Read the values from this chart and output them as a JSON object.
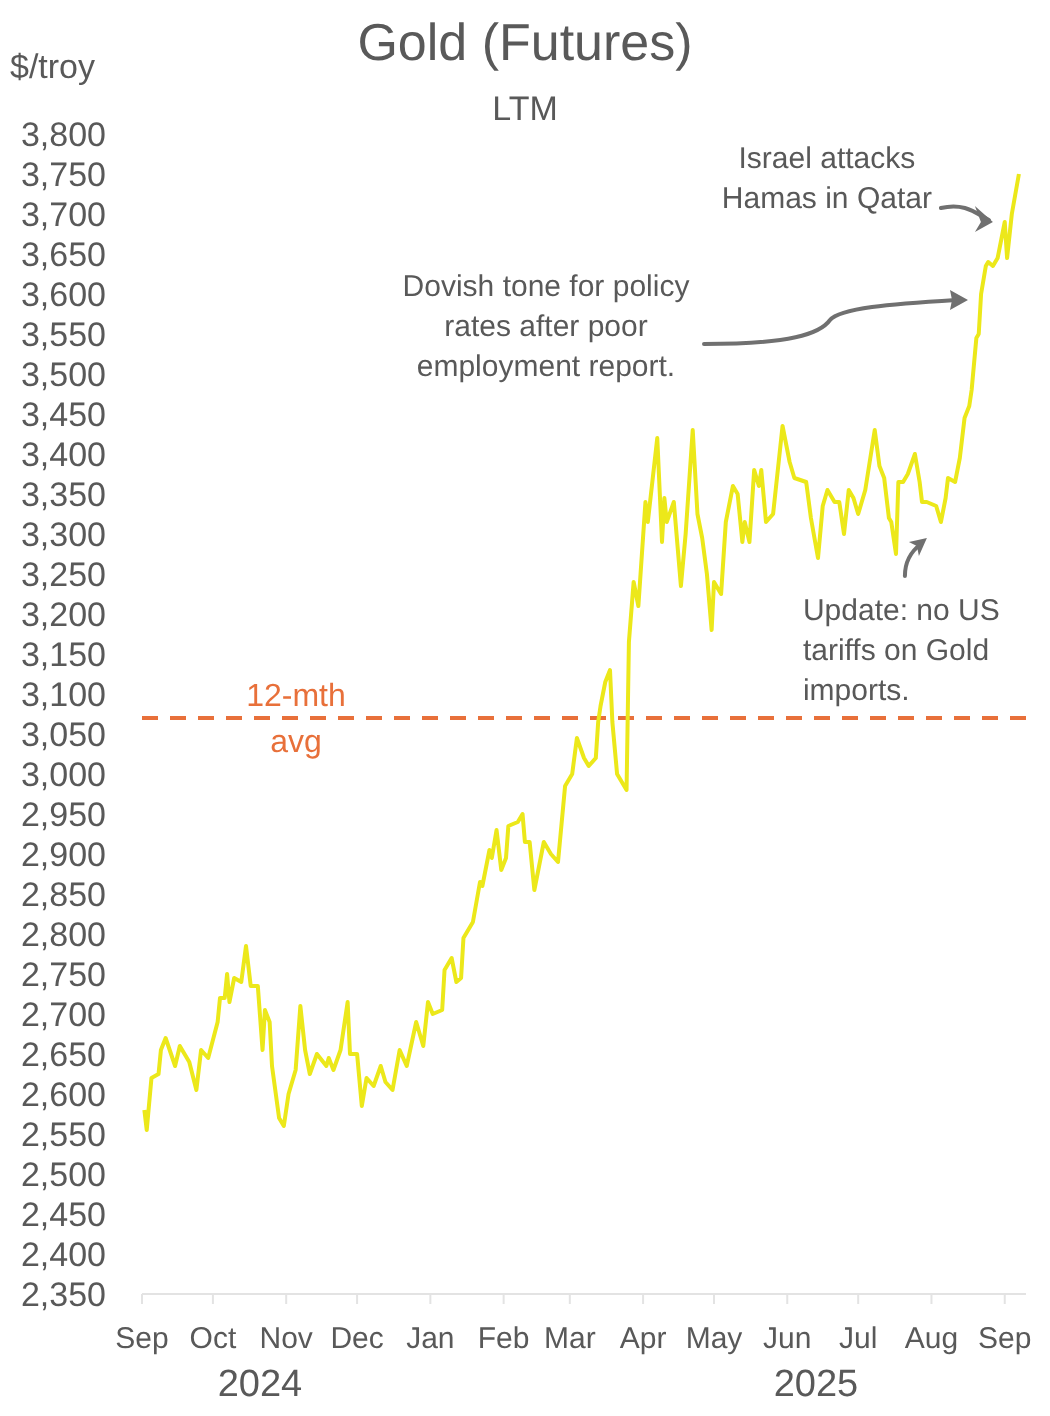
{
  "chart_data": {
    "type": "line",
    "title": "Gold (Futures)",
    "subtitle": "LTM",
    "ylabel": "$/troy",
    "x": [
      "2024-09-02",
      "2024-09-03",
      "2024-09-05",
      "2024-09-08",
      "2024-09-09",
      "2024-09-11",
      "2024-09-15",
      "2024-09-17",
      "2024-09-21",
      "2024-09-24",
      "2024-09-26",
      "2024-09-29",
      "2024-10-03",
      "2024-10-04",
      "2024-10-06",
      "2024-10-07",
      "2024-10-08",
      "2024-10-10",
      "2024-10-13",
      "2024-10-15",
      "2024-10-17",
      "2024-10-20",
      "2024-10-22",
      "2024-10-23",
      "2024-10-25",
      "2024-10-26",
      "2024-10-29",
      "2024-10-31",
      "2024-11-02",
      "2024-11-05",
      "2024-11-07",
      "2024-11-09",
      "2024-11-11",
      "2024-11-14",
      "2024-11-18",
      "2024-11-19",
      "2024-11-21",
      "2024-11-24",
      "2024-11-27",
      "2024-11-28",
      "2024-12-01",
      "2024-12-03",
      "2024-12-05",
      "2024-12-08",
      "2024-12-11",
      "2024-12-13",
      "2024-12-16",
      "2024-12-19",
      "2024-12-22",
      "2024-12-26",
      "2024-12-29",
      "2024-12-31",
      "2025-01-02",
      "2025-01-06",
      "2025-01-07",
      "2025-01-10",
      "2025-01-12",
      "2025-01-14",
      "2025-01-15",
      "2025-01-19",
      "2025-01-22",
      "2025-01-23",
      "2025-01-26",
      "2025-01-27",
      "2025-01-29",
      "2025-01-31",
      "2025-02-02",
      "2025-02-03",
      "2025-02-07",
      "2025-02-09",
      "2025-02-10",
      "2025-02-12",
      "2025-02-14",
      "2025-02-16",
      "2025-02-18",
      "2025-02-21",
      "2025-02-24",
      "2025-02-27",
      "2025-03-02",
      "2025-03-04",
      "2025-03-07",
      "2025-03-09",
      "2025-03-12",
      "2025-03-13",
      "2025-03-14",
      "2025-03-16",
      "2025-03-18",
      "2025-03-19",
      "2025-03-21",
      "2025-03-25",
      "2025-03-26",
      "2025-03-28",
      "2025-03-30",
      "2025-04-02",
      "2025-04-03",
      "2025-04-07",
      "2025-04-09",
      "2025-04-10",
      "2025-04-11",
      "2025-04-14",
      "2025-04-17",
      "2025-04-19",
      "2025-04-22",
      "2025-04-24",
      "2025-04-26",
      "2025-04-28",
      "2025-04-30",
      "2025-05-01",
      "2025-05-04",
      "2025-05-06",
      "2025-05-09",
      "2025-05-11",
      "2025-05-13",
      "2025-05-14",
      "2025-05-16",
      "2025-05-18",
      "2025-05-20",
      "2025-05-21",
      "2025-05-23",
      "2025-05-26",
      "2025-05-30",
      "2025-06-02",
      "2025-06-04",
      "2025-06-09",
      "2025-06-11",
      "2025-06-14",
      "2025-06-16",
      "2025-06-18",
      "2025-06-21",
      "2025-06-23",
      "2025-06-25",
      "2025-06-27",
      "2025-06-29",
      "2025-07-01",
      "2025-07-03",
      "2025-07-04",
      "2025-07-08",
      "2025-07-10",
      "2025-07-12",
      "2025-07-14",
      "2025-07-15",
      "2025-07-17",
      "2025-07-18",
      "2025-07-20",
      "2025-07-22",
      "2025-07-25",
      "2025-07-27",
      "2025-07-28",
      "2025-07-30",
      "2025-08-03",
      "2025-08-05",
      "2025-08-07",
      "2025-08-08",
      "2025-08-11",
      "2025-08-13",
      "2025-08-15",
      "2025-08-17",
      "2025-08-18",
      "2025-08-20",
      "2025-08-21",
      "2025-08-22",
      "2025-08-24",
      "2025-08-25",
      "2025-08-27",
      "2025-08-29",
      "2025-09-01",
      "2025-09-02",
      "2025-09-04",
      "2025-09-07"
    ],
    "values": [
      2580,
      2555,
      2620,
      2625,
      2655,
      2670,
      2635,
      2660,
      2640,
      2605,
      2655,
      2645,
      2690,
      2720,
      2720,
      2750,
      2715,
      2745,
      2740,
      2785,
      2735,
      2735,
      2655,
      2705,
      2690,
      2635,
      2570,
      2560,
      2600,
      2630,
      2710,
      2655,
      2625,
      2650,
      2635,
      2645,
      2630,
      2655,
      2715,
      2650,
      2650,
      2585,
      2620,
      2610,
      2635,
      2615,
      2605,
      2655,
      2635,
      2690,
      2660,
      2715,
      2700,
      2705,
      2755,
      2770,
      2740,
      2745,
      2795,
      2815,
      2865,
      2860,
      2905,
      2895,
      2930,
      2880,
      2895,
      2935,
      2940,
      2950,
      2915,
      2915,
      2855,
      2885,
      2915,
      2900,
      2890,
      2985,
      3000,
      3045,
      3020,
      3010,
      3020,
      3065,
      3085,
      3115,
      3130,
      3065,
      3000,
      2980,
      3165,
      3240,
      3210,
      3340,
      3315,
      3420,
      3290,
      3345,
      3315,
      3340,
      3235,
      3300,
      3430,
      3325,
      3295,
      3250,
      3180,
      3240,
      3225,
      3315,
      3360,
      3350,
      3290,
      3315,
      3290,
      3380,
      3360,
      3380,
      3315,
      3325,
      3435,
      3390,
      3370,
      3365,
      3320,
      3270,
      3335,
      3355,
      3340,
      3340,
      3300,
      3355,
      3345,
      3325,
      3345,
      3355,
      3430,
      3385,
      3370,
      3320,
      3315,
      3275,
      3365,
      3365,
      3375,
      3400,
      3365,
      3340,
      3340,
      3335,
      3315,
      3345,
      3370,
      3365,
      3395,
      3445,
      3460,
      3480,
      3545,
      3550,
      3600,
      3635,
      3640,
      3635,
      3645,
      3690,
      3645,
      3700,
      3750
    ],
    "color": "#ece81a",
    "line_style": "solid",
    "marker": "none",
    "xlim": [
      "2024-09-01",
      "2025-09-10"
    ],
    "xticks": [
      {
        "value": "2024-09-01",
        "label": "Sep"
      },
      {
        "value": "2024-10-01",
        "label": "Oct"
      },
      {
        "value": "2024-11-01",
        "label": "Nov"
      },
      {
        "value": "2024-12-01",
        "label": "Dec"
      },
      {
        "value": "2025-01-01",
        "label": "Jan"
      },
      {
        "value": "2025-02-01",
        "label": "Feb"
      },
      {
        "value": "2025-03-01",
        "label": "Mar"
      },
      {
        "value": "2025-04-01",
        "label": "Apr"
      },
      {
        "value": "2025-05-01",
        "label": "May"
      },
      {
        "value": "2025-06-01",
        "label": "Jun"
      },
      {
        "value": "2025-07-01",
        "label": "Jul"
      },
      {
        "value": "2025-08-01",
        "label": "Aug"
      },
      {
        "value": "2025-09-01",
        "label": "Sep"
      }
    ],
    "ylim": [
      2350,
      3800
    ],
    "yticks": [
      {
        "value": 2350,
        "label": "2,350"
      },
      {
        "value": 2400,
        "label": "2,400"
      },
      {
        "value": 2450,
        "label": "2,450"
      },
      {
        "value": 2500,
        "label": "2,500"
      },
      {
        "value": 2550,
        "label": "2,550"
      },
      {
        "value": 2600,
        "label": "2,600"
      },
      {
        "value": 2650,
        "label": "2,650"
      },
      {
        "value": 2700,
        "label": "2,700"
      },
      {
        "value": 2750,
        "label": "2,750"
      },
      {
        "value": 2800,
        "label": "2,800"
      },
      {
        "value": 2850,
        "label": "2,850"
      },
      {
        "value": 2900,
        "label": "2,900"
      },
      {
        "value": 2950,
        "label": "2,950"
      },
      {
        "value": 3000,
        "label": "3,000"
      },
      {
        "value": 3050,
        "label": "3,050"
      },
      {
        "value": 3100,
        "label": "3,100"
      },
      {
        "value": 3150,
        "label": "3,150"
      },
      {
        "value": 3200,
        "label": "3,200"
      },
      {
        "value": 3250,
        "label": "3,250"
      },
      {
        "value": 3300,
        "label": "3,300"
      },
      {
        "value": 3350,
        "label": "3,350"
      },
      {
        "value": 3400,
        "label": "3,400"
      },
      {
        "value": 3450,
        "label": "3,450"
      },
      {
        "value": 3500,
        "label": "3,500"
      },
      {
        "value": 3550,
        "label": "3,550"
      },
      {
        "value": 3600,
        "label": "3,600"
      },
      {
        "value": 3650,
        "label": "3,650"
      },
      {
        "value": 3700,
        "label": "3,700"
      },
      {
        "value": 3750,
        "label": "3,750"
      },
      {
        "value": 3800,
        "label": "3,800"
      }
    ],
    "ref_lines": [
      {
        "axis": "y",
        "value": 3070,
        "label": "12-mth avg",
        "color": "#e8703a",
        "line_style": "dashed"
      }
    ],
    "annotations": [
      {
        "text": "Israel attacks Hamas in Qatar",
        "x": "2025-08-27",
        "y": 3690
      },
      "Dovish tone for policy rates after poor employment report.",
      {
        "text": "Update: no US tariffs on Gold imports.",
        "x": "2025-08-05",
        "y": 3315
      },
      "2024",
      "2025"
    ]
  }
}
